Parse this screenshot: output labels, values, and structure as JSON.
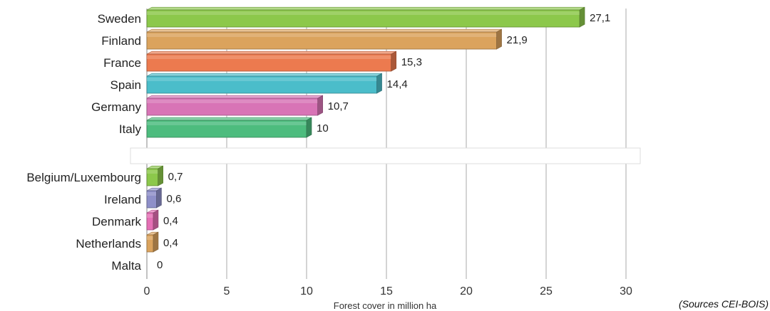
{
  "chart_data": {
    "type": "bar",
    "orientation": "horizontal",
    "style": "3d",
    "xlabel": "Forest cover in million ha",
    "xlim": [
      0,
      30
    ],
    "xticks": [
      0,
      5,
      10,
      15,
      20,
      25,
      30
    ],
    "grid": true,
    "source_note": "(Sources CEI-BOIS)",
    "groups": [
      {
        "categories": [
          "Sweden",
          "Finland",
          "France",
          "Spain",
          "Germany",
          "Italy"
        ],
        "values": [
          27.1,
          21.9,
          15.3,
          14.4,
          10.7,
          10
        ],
        "value_labels": [
          "27,1",
          "21,9",
          "15,3",
          "14,4",
          "10,7",
          "10"
        ],
        "colors": [
          "#8cc84b",
          "#dba35d",
          "#ec7a4f",
          "#4bbdca",
          "#d874b6",
          "#4dbc7e"
        ]
      },
      {
        "categories": [
          "Belgium/Luxembourg",
          "Ireland",
          "Denmark",
          "Netherlands",
          "Malta"
        ],
        "values": [
          0.7,
          0.6,
          0.4,
          0.4,
          0
        ],
        "value_labels": [
          "0,7",
          "0,6",
          "0,4",
          "0,4",
          "0"
        ],
        "colors": [
          "#8cc84b",
          "#8e8fc9",
          "#e56fb5",
          "#dba35d",
          "#4dbc7e"
        ]
      }
    ]
  }
}
